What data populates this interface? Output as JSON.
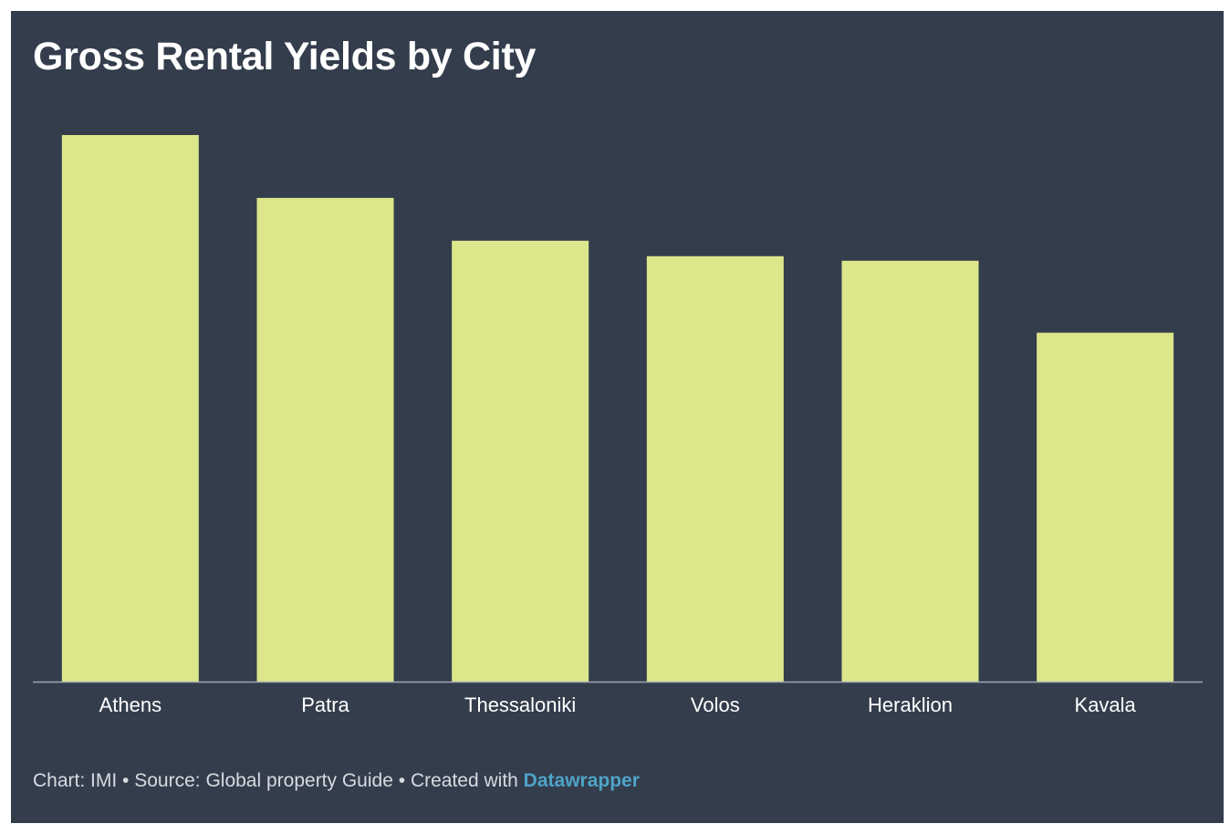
{
  "title": "Gross Rental Yields by City",
  "chart_data": {
    "type": "bar",
    "title": "Gross Rental Yields by City",
    "xlabel": "",
    "ylabel": "",
    "categories": [
      "Athens",
      "Patra",
      "Thessaloniki",
      "Volos",
      "Heraklion",
      "Kavala"
    ],
    "values": [
      6.0,
      5.31,
      4.84,
      4.67,
      4.62,
      3.83
    ],
    "ylim": [
      0,
      6.0
    ],
    "grid": false,
    "bar_color": "#dce78c"
  },
  "footer": {
    "chart_credit": "Chart: IMI",
    "separator": "•",
    "source": "Source: Global property Guide",
    "created_with": "Created with",
    "tool": "Datawrapper"
  },
  "colors": {
    "background": "#333d4c",
    "bar": "#dce78c",
    "axis": "#a0a7b0",
    "link": "#4fa3c7"
  }
}
